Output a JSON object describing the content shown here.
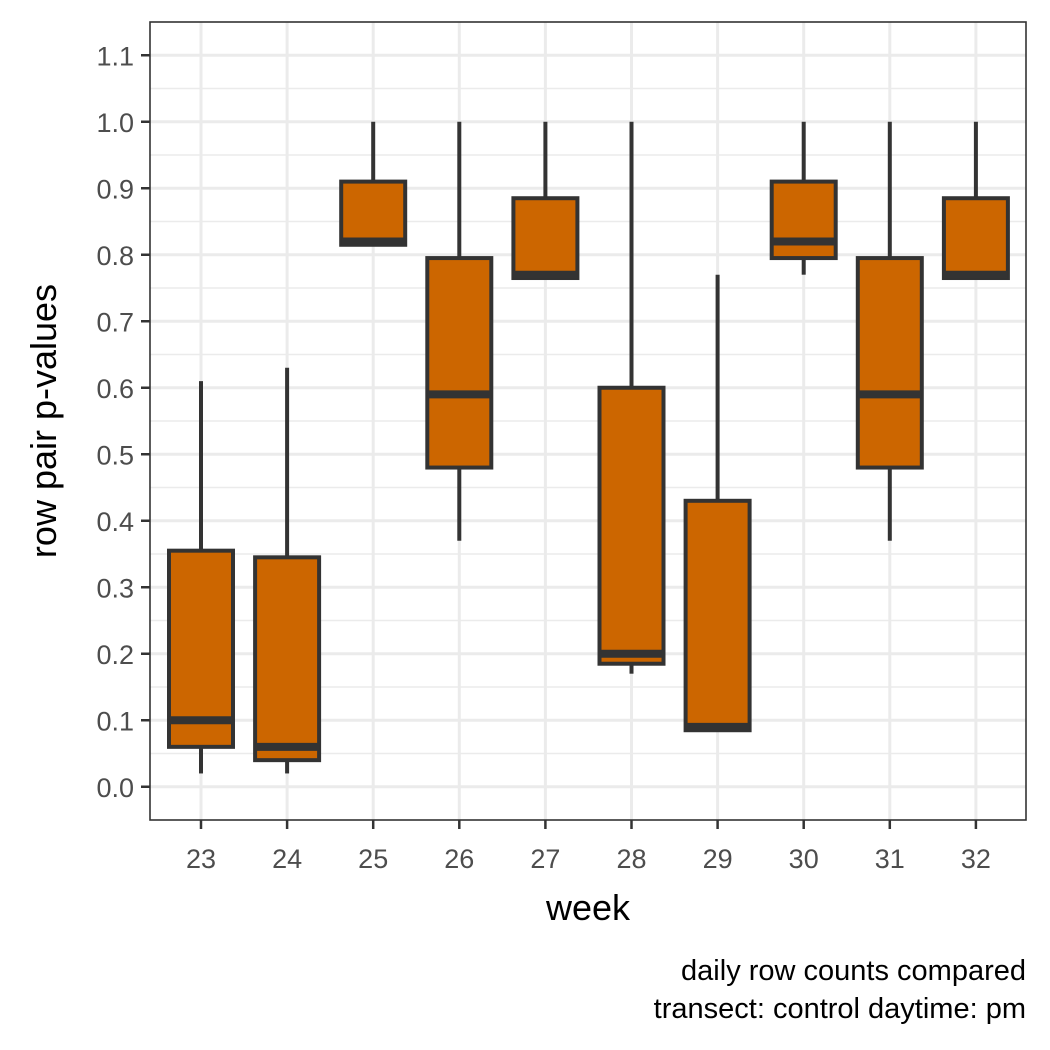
{
  "chart_data": {
    "type": "boxplot",
    "xlabel": "week",
    "ylabel": "row pair p-values",
    "caption": [
      "daily row counts compared",
      "transect: control daytime: pm"
    ],
    "categories": [
      "23",
      "24",
      "25",
      "26",
      "27",
      "28",
      "29",
      "30",
      "31",
      "32"
    ],
    "yticks": [
      "0.0",
      "0.1",
      "0.2",
      "0.3",
      "0.4",
      "0.5",
      "0.6",
      "0.7",
      "0.8",
      "0.9",
      "1.0",
      "1.1"
    ],
    "ylim": [
      -0.05,
      1.15
    ],
    "grid": true,
    "colors": {
      "box_fill": "#CC6600",
      "box_line": "#333333",
      "grid": "#EBEBEB",
      "panel_border": "#333333"
    },
    "boxes": [
      {
        "week": "23",
        "min": 0.02,
        "q1": 0.06,
        "median": 0.1,
        "q3": 0.355,
        "max": 0.61
      },
      {
        "week": "24",
        "min": 0.02,
        "q1": 0.04,
        "median": 0.06,
        "q3": 0.345,
        "max": 0.63
      },
      {
        "week": "25",
        "min": 0.815,
        "q1": 0.815,
        "median": 0.82,
        "q3": 0.91,
        "max": 1.0
      },
      {
        "week": "26",
        "min": 0.37,
        "q1": 0.48,
        "median": 0.59,
        "q3": 0.795,
        "max": 1.0
      },
      {
        "week": "27",
        "min": 0.765,
        "q1": 0.765,
        "median": 0.77,
        "q3": 0.885,
        "max": 1.0
      },
      {
        "week": "28",
        "min": 0.17,
        "q1": 0.185,
        "median": 0.2,
        "q3": 0.6,
        "max": 1.0
      },
      {
        "week": "29",
        "min": 0.085,
        "q1": 0.085,
        "median": 0.09,
        "q3": 0.43,
        "max": 0.77
      },
      {
        "week": "30",
        "min": 0.77,
        "q1": 0.795,
        "median": 0.82,
        "q3": 0.91,
        "max": 1.0
      },
      {
        "week": "31",
        "min": 0.37,
        "q1": 0.48,
        "median": 0.59,
        "q3": 0.795,
        "max": 1.0
      },
      {
        "week": "32",
        "min": 0.765,
        "q1": 0.765,
        "median": 0.77,
        "q3": 0.885,
        "max": 1.0
      }
    ]
  }
}
